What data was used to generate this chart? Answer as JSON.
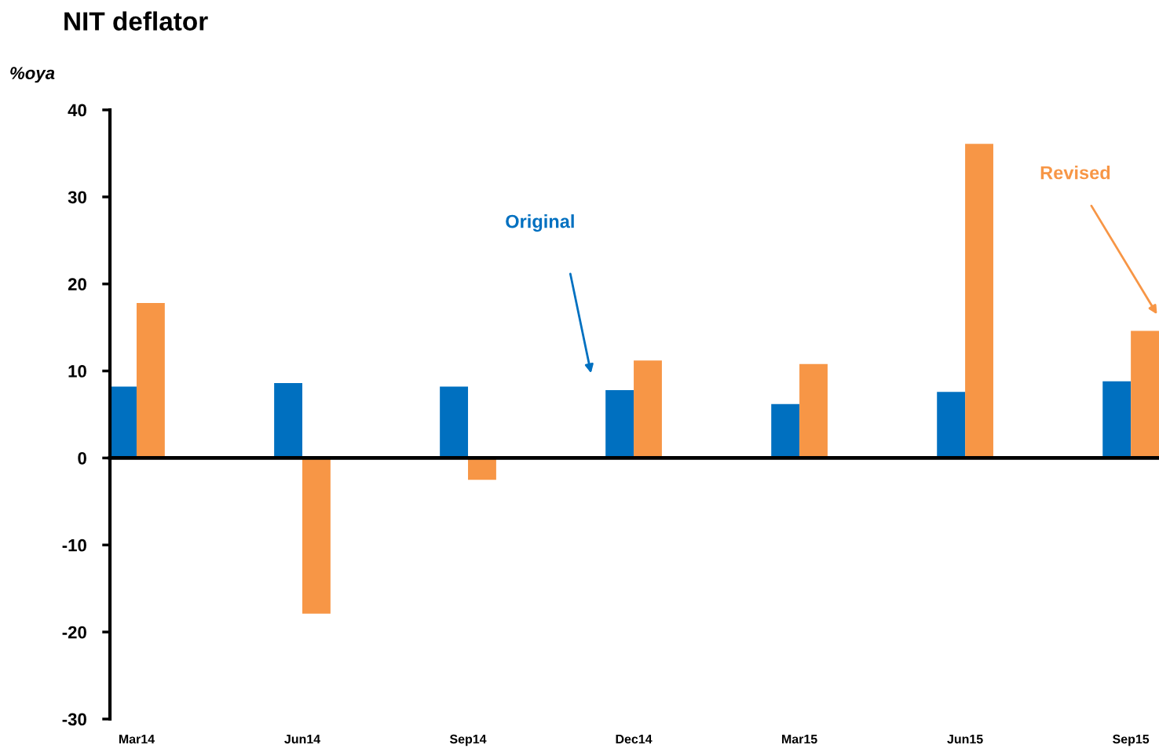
{
  "chart_data": {
    "type": "bar",
    "title": "NIT deflator",
    "ylabel": "%oya",
    "categories": [
      "Mar14",
      "Jun14",
      "Sep14",
      "Dec14",
      "Mar15",
      "Jun15",
      "Sep15"
    ],
    "series": [
      {
        "name": "Original",
        "color": "#0070c0",
        "values": [
          8.2,
          8.6,
          8.2,
          7.8,
          6.2,
          7.6,
          8.8
        ]
      },
      {
        "name": "Revised",
        "color": "#f79646",
        "values": [
          17.8,
          -17.9,
          -2.5,
          11.2,
          10.8,
          36.1,
          14.6
        ]
      }
    ],
    "ylim": [
      -30,
      40
    ],
    "yticks": [
      -30,
      -20,
      -10,
      0,
      10,
      20,
      30,
      40
    ],
    "legend": false
  }
}
